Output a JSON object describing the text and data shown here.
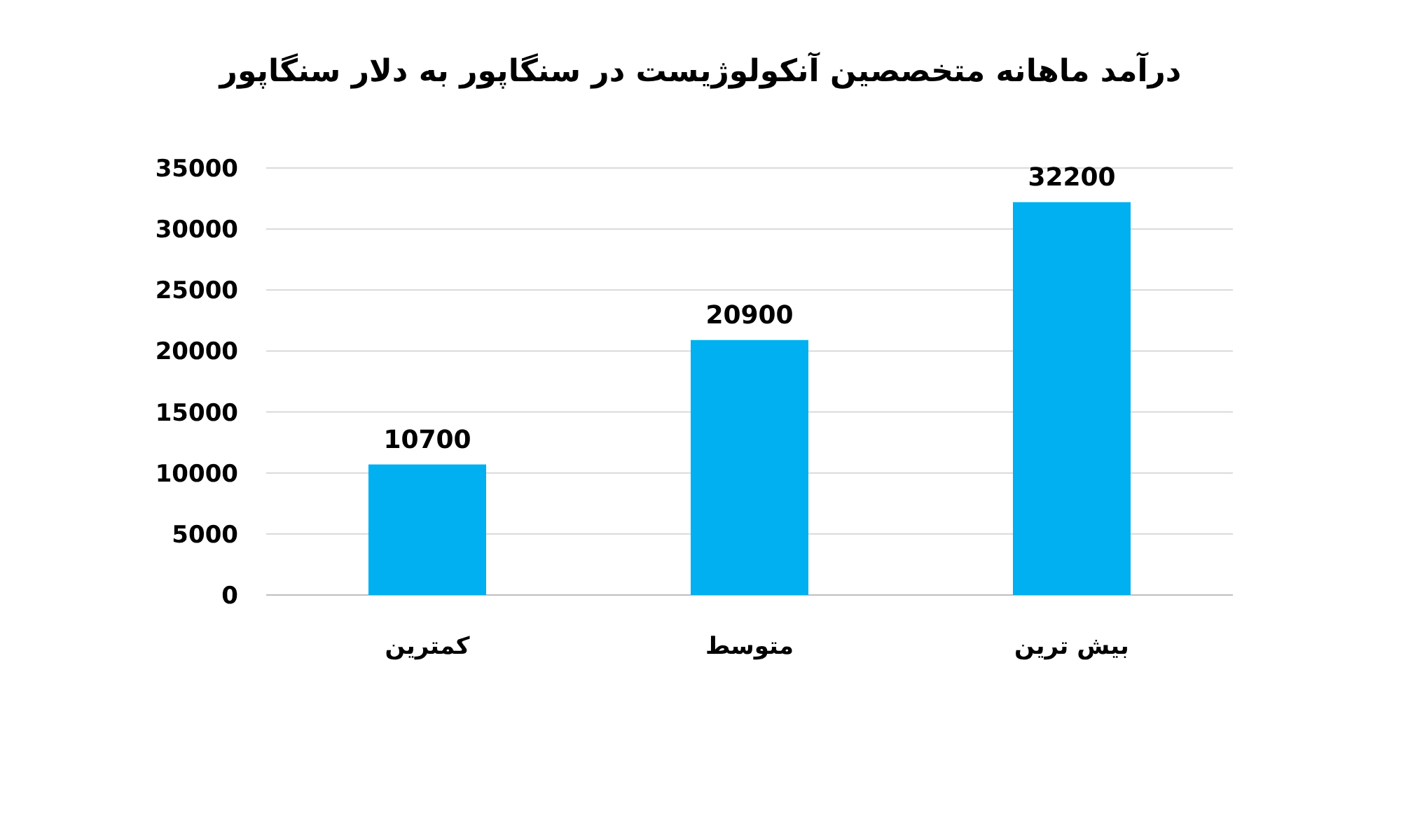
{
  "chart_data": {
    "type": "bar",
    "title": "درآمد ماهانه متخصصین آنکولوژیست در سنگاپور به دلار سنگاپور",
    "categories": [
      "کمترین",
      "متوسط",
      "بیش ترین"
    ],
    "values": [
      10700,
      20900,
      32200
    ],
    "color": "#00b0f0",
    "ylim": [
      0,
      35000
    ],
    "yticks": [
      0,
      5000,
      10000,
      15000,
      20000,
      25000,
      30000,
      35000
    ],
    "grid": "y",
    "data_labels": true
  }
}
